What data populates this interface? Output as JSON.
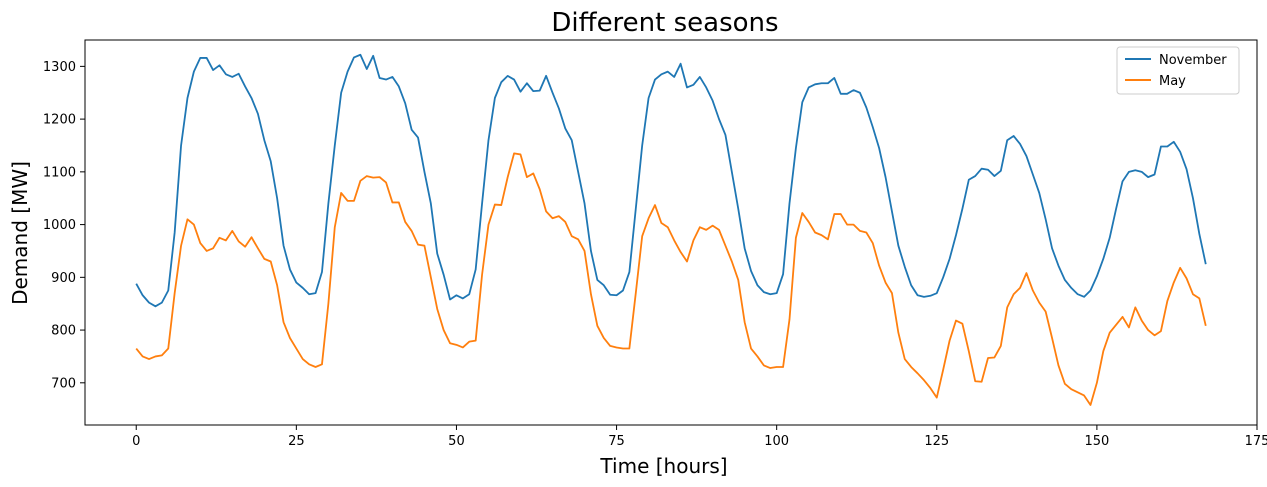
{
  "chart_data": {
    "type": "line",
    "title": "Different seasons",
    "xlabel": "Time [hours]",
    "ylabel": "Demand [MW]",
    "xlim": [
      -8,
      175
    ],
    "ylim": [
      620,
      1350
    ],
    "xticks": [
      0,
      25,
      50,
      75,
      100,
      125,
      150,
      175
    ],
    "yticks": [
      700,
      800,
      900,
      1000,
      1100,
      1200,
      1300
    ],
    "grid": false,
    "legend_position": "top-right",
    "series": [
      {
        "name": "November",
        "color": "#1f77b4",
        "values": [
          888,
          866,
          852,
          845,
          852,
          875,
          985,
          1150,
          1240,
          1290,
          1316,
          1316,
          1293,
          1302,
          1285,
          1280,
          1286,
          1262,
          1240,
          1210,
          1160,
          1120,
          1050,
          960,
          915,
          890,
          880,
          868,
          870,
          910,
          1040,
          1150,
          1250,
          1290,
          1317,
          1322,
          1295,
          1320,
          1278,
          1275,
          1280,
          1262,
          1230,
          1180,
          1165,
          1100,
          1040,
          945,
          905,
          858,
          866,
          860,
          868,
          915,
          1040,
          1160,
          1240,
          1270,
          1282,
          1275,
          1252,
          1268,
          1253,
          1254,
          1282,
          1250,
          1220,
          1182,
          1160,
          1100,
          1040,
          950,
          895,
          885,
          867,
          866,
          875,
          910,
          1030,
          1150,
          1240,
          1275,
          1285,
          1290,
          1280,
          1305,
          1260,
          1265,
          1280,
          1260,
          1235,
          1200,
          1170,
          1100,
          1030,
          955,
          912,
          885,
          872,
          868,
          870,
          906,
          1040,
          1145,
          1232,
          1260,
          1266,
          1268,
          1268,
          1278,
          1248,
          1248,
          1255,
          1250,
          1222,
          1185,
          1145,
          1090,
          1025,
          960,
          920,
          885,
          866,
          863,
          865,
          870,
          900,
          935,
          980,
          1030,
          1085,
          1092,
          1106,
          1104,
          1092,
          1102,
          1160,
          1168,
          1153,
          1130,
          1095,
          1060,
          1010,
          955,
          922,
          895,
          880,
          868,
          863,
          875,
          902,
          935,
          975,
          1030,
          1082,
          1100,
          1103,
          1100,
          1090,
          1095,
          1148,
          1148,
          1157,
          1138,
          1105,
          1050,
          982,
          925
        ]
      },
      {
        "name": "May",
        "color": "#ff7f0e",
        "values": [
          765,
          750,
          745,
          750,
          752,
          765,
          870,
          960,
          1010,
          1000,
          965,
          950,
          955,
          975,
          970,
          988,
          968,
          958,
          976,
          955,
          935,
          930,
          885,
          815,
          785,
          765,
          745,
          735,
          730,
          735,
          850,
          995,
          1060,
          1045,
          1045,
          1083,
          1092,
          1089,
          1090,
          1080,
          1042,
          1042,
          1005,
          988,
          962,
          960,
          900,
          840,
          800,
          775,
          772,
          767,
          778,
          780,
          905,
          1000,
          1038,
          1037,
          1090,
          1135,
          1133,
          1090,
          1097,
          1067,
          1025,
          1012,
          1016,
          1005,
          978,
          972,
          950,
          868,
          808,
          785,
          770,
          767,
          765,
          765,
          870,
          978,
          1012,
          1037,
          1003,
          995,
          970,
          948,
          930,
          970,
          995,
          990,
          998,
          990,
          960,
          930,
          895,
          815,
          765,
          750,
          733,
          728,
          730,
          730,
          820,
          975,
          1022,
          1005,
          985,
          980,
          972,
          1020,
          1020,
          1000,
          1000,
          988,
          985,
          965,
          922,
          890,
          870,
          795,
          745,
          730,
          718,
          705,
          690,
          672,
          725,
          780,
          818,
          812,
          760,
          703,
          702,
          747,
          748,
          770,
          843,
          868,
          880,
          908,
          875,
          852,
          835,
          785,
          733,
          698,
          688,
          682,
          676,
          658,
          700,
          760,
          795,
          810,
          825,
          805,
          843,
          818,
          800,
          790,
          798,
          855,
          890,
          918,
          898,
          868,
          860,
          808
        ]
      }
    ]
  }
}
